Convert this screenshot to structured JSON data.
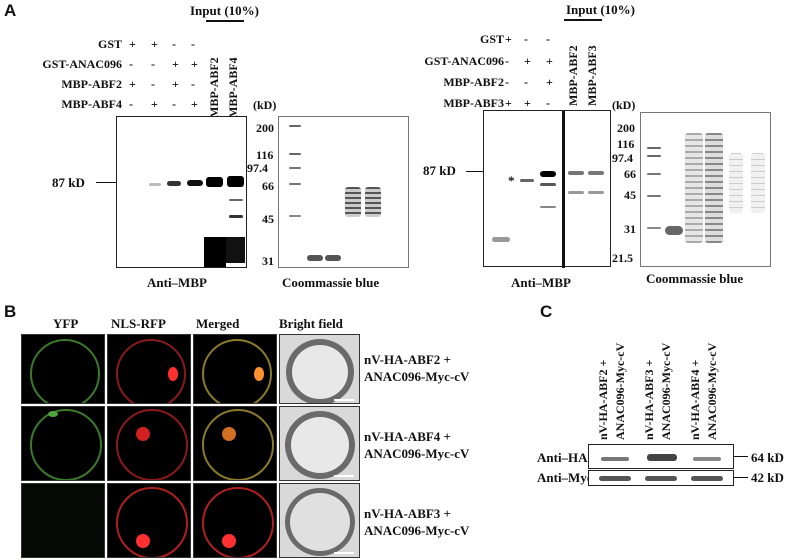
{
  "panel_letters": {
    "a": "A",
    "b": "B",
    "c": "C"
  },
  "panel_a_left": {
    "input_label": "Input (10%)",
    "row_labels": [
      "GST",
      "GST-ANAC096",
      "MBP-ABF2",
      "MBP-ABF4"
    ],
    "signs": [
      [
        "+",
        "+",
        "-",
        "-"
      ],
      [
        "-",
        "-",
        "+",
        "+"
      ],
      [
        "+",
        "-",
        "+",
        "-"
      ],
      [
        "-",
        "+",
        "-",
        "+"
      ]
    ],
    "input_lanes": [
      "MBP-ABF2",
      "MBP-ABF4"
    ],
    "marker_label": "87 kD",
    "blot_caption": "Anti–MBP",
    "kd_unit": "(kD)",
    "ladder": [
      "200",
      "116",
      "97.4",
      "66",
      "45",
      "31"
    ],
    "gel_caption": "Coommassie blue"
  },
  "panel_a_right": {
    "input_label": "Input (10%)",
    "row_labels": [
      "GST",
      "GST-ANAC096",
      "MBP-ABF2",
      "MBP-ABF3"
    ],
    "signs": [
      [
        "+",
        "-",
        "-"
      ],
      [
        "-",
        "+",
        "+"
      ],
      [
        "-",
        "-",
        "+"
      ],
      [
        "+",
        "+",
        "-"
      ]
    ],
    "input_lanes": [
      "MBP-ABF2",
      "MBP-ABF3"
    ],
    "marker_label": "87 kD",
    "asterisk": "*",
    "blot_caption": "Anti–MBP",
    "kd_unit": "(kD)",
    "ladder": [
      "200",
      "116",
      "97.4",
      "66",
      "45",
      "31",
      "21.5"
    ],
    "gel_caption": "Coommassie blue"
  },
  "panel_b": {
    "columns": [
      "YFP",
      "NLS-RFP",
      "Merged",
      "Bright field"
    ],
    "rows": [
      {
        "line1": "nV-HA-ABF2 +",
        "line2": "ANAC096-Myc-cV"
      },
      {
        "line1": "nV-HA-ABF4 +",
        "line2": "ANAC096-Myc-cV"
      },
      {
        "line1": "nV-HA-ABF3 +",
        "line2": "ANAC096-Myc-cV"
      }
    ]
  },
  "panel_c": {
    "lanes": [
      {
        "line1": "nV-HA-ABF2 +",
        "line2": "ANAC096-Myc-cV"
      },
      {
        "line1": "nV-HA-ABF3 +",
        "line2": "ANAC096-Myc-cV"
      },
      {
        "line1": "nV-HA-ABF4 +",
        "line2": "ANAC096-Myc-cV"
      }
    ],
    "blots": [
      {
        "label": "Anti–HA",
        "size": "64 kD"
      },
      {
        "label": "Anti–Myc",
        "size": "42 kD"
      }
    ]
  }
}
